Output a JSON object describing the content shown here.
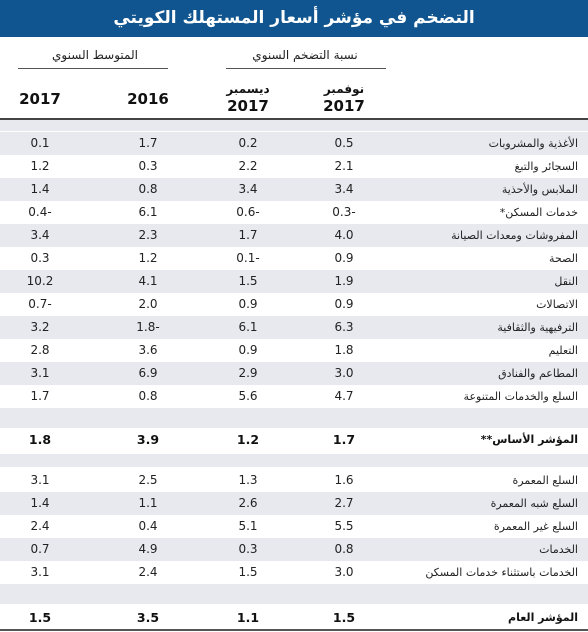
{
  "title": "التضخم في مؤشر أسعار المستهلك الكويتي",
  "headers": {
    "group_annual_inflation": "نسبة التضخم السنوي",
    "group_annual_average": "المتوسط السنوي",
    "col_2017": "2017",
    "col_2016": "2016",
    "col_dec_month": "ديسمبر",
    "col_dec_year": "2017",
    "col_nov_month": "نوفمبر",
    "col_nov_year": "2017"
  },
  "section1": [
    {
      "label": "الأغذية والمشروبات",
      "avg2017": "0.1",
      "avg2016": "1.7",
      "dec": "0.2",
      "nov": "0.5"
    },
    {
      "label": "السجائر والتبغ",
      "avg2017": "1.2",
      "avg2016": "0.3",
      "dec": "2.2",
      "nov": "2.1"
    },
    {
      "label": "الملابس والأحذية",
      "avg2017": "1.4",
      "avg2016": "0.8",
      "dec": "3.4",
      "nov": "3.4"
    },
    {
      "label": "خدمات المسكن*",
      "avg2017": "0.4-",
      "avg2016": "6.1",
      "dec": "0.6-",
      "nov": "0.3-"
    },
    {
      "label": "المفروشات ومعدات الصيانة",
      "avg2017": "3.4",
      "avg2016": "2.3",
      "dec": "1.7",
      "nov": "4.0"
    },
    {
      "label": "الصحة",
      "avg2017": "0.3",
      "avg2016": "1.2",
      "dec": "0.1-",
      "nov": "0.9"
    },
    {
      "label": "النقل",
      "avg2017": "10.2",
      "avg2016": "4.1",
      "dec": "1.5",
      "nov": "1.9"
    },
    {
      "label": "الاتصالات",
      "avg2017": "0.7-",
      "avg2016": "2.0",
      "dec": "0.9",
      "nov": "0.9"
    },
    {
      "label": "الترفيهية والثقافية",
      "avg2017": "3.2",
      "avg2016": "1.8-",
      "dec": "6.1",
      "nov": "6.3"
    },
    {
      "label": "التعليم",
      "avg2017": "2.8",
      "avg2016": "3.6",
      "dec": "0.9",
      "nov": "1.8"
    },
    {
      "label": "المطاعم والفنادق",
      "avg2017": "3.1",
      "avg2016": "6.9",
      "dec": "2.9",
      "nov": "3.0"
    },
    {
      "label": "السلع والخدمات المتنوعة",
      "avg2017": "1.7",
      "avg2016": "0.8",
      "dec": "5.6",
      "nov": "4.7"
    }
  ],
  "core": {
    "label": "المؤشر الأساس**",
    "avg2017": "1.8",
    "avg2016": "3.9",
    "dec": "1.2",
    "nov": "1.7"
  },
  "section2": [
    {
      "label": "السلع المعمرة",
      "avg2017": "3.1",
      "avg2016": "2.5",
      "dec": "1.3",
      "nov": "1.6"
    },
    {
      "label": "السلع شبه المعمرة",
      "avg2017": "1.4",
      "avg2016": "1.1",
      "dec": "2.6",
      "nov": "2.7"
    },
    {
      "label": "السلع غير المعمرة",
      "avg2017": "2.4",
      "avg2016": "0.4",
      "dec": "5.1",
      "nov": "5.5"
    },
    {
      "label": "الخدمات",
      "avg2017": "0.7",
      "avg2016": "4.9",
      "dec": "0.3",
      "nov": "0.8"
    },
    {
      "label": "الخدمات باستثناء خدمات المسكن",
      "avg2017": "3.1",
      "avg2016": "2.4",
      "dec": "1.5",
      "nov": "3.0"
    }
  ],
  "general": {
    "label": "المؤشر العام",
    "avg2017": "1.5",
    "avg2016": "3.5",
    "dec": "1.1",
    "nov": "1.5"
  },
  "colors": {
    "title_bg": "#10558f",
    "row_shade": "#e7e9ef"
  }
}
